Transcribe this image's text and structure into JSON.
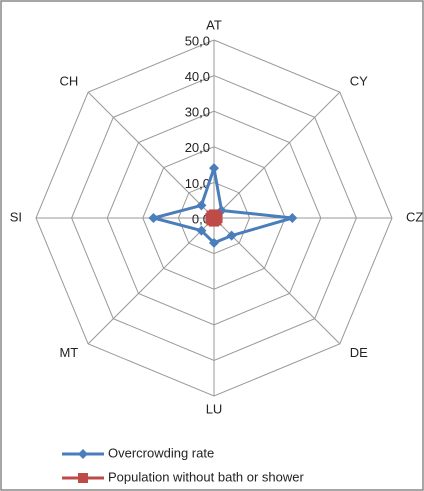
{
  "chart_data": {
    "type": "radar",
    "categories": [
      "AT",
      "CY",
      "CZ",
      "DE",
      "LU",
      "MT",
      "SI",
      "CH"
    ],
    "series": [
      {
        "name": "Overcrowding rate",
        "color": "#4a7ebb",
        "marker": "diamond",
        "values": [
          14,
          3,
          22,
          7,
          7,
          5,
          17,
          5
        ]
      },
      {
        "name": "Population without bath or shower",
        "color": "#be4b48",
        "marker": "square",
        "values": [
          1,
          1,
          1,
          1,
          1,
          1,
          1,
          1
        ]
      }
    ],
    "rlim": [
      0,
      50
    ],
    "rticks": [
      {
        "value": 0,
        "label": "0,0"
      },
      {
        "value": 10,
        "label": "10,0"
      },
      {
        "value": 20,
        "label": "20,0"
      },
      {
        "value": 30,
        "label": "30,0"
      },
      {
        "value": 40,
        "label": "40,0"
      },
      {
        "value": 50,
        "label": "50,0"
      }
    ],
    "grid": true,
    "legend": "bottom"
  }
}
